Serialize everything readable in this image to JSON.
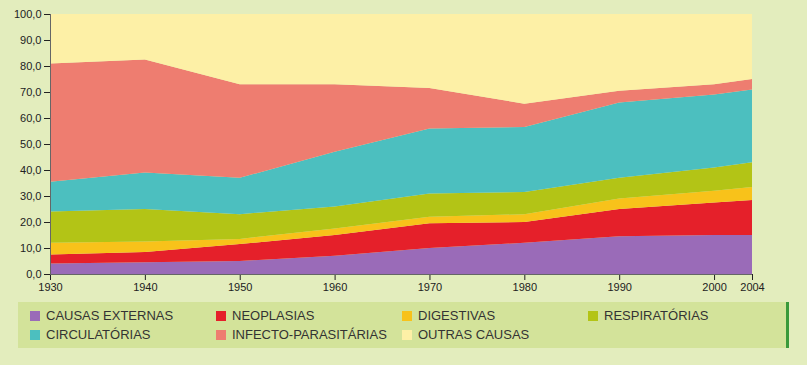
{
  "chart_data": {
    "type": "area",
    "stacked": true,
    "grid": false,
    "x": [
      1930,
      1940,
      1950,
      1960,
      1970,
      1980,
      1990,
      2000,
      2004
    ],
    "xlim": [
      1930,
      2004
    ],
    "xticks": [
      1930,
      1940,
      1950,
      1960,
      1970,
      1980,
      1990,
      2000,
      2004
    ],
    "ylim": [
      0,
      100
    ],
    "yticks": [
      {
        "value": 0,
        "label": "0,0"
      },
      {
        "value": 10,
        "label": "10,0"
      },
      {
        "value": 20,
        "label": "20,0"
      },
      {
        "value": 30,
        "label": "30,0"
      },
      {
        "value": 40,
        "label": "40,0"
      },
      {
        "value": 50,
        "label": "50,0"
      },
      {
        "value": 60,
        "label": "60,0"
      },
      {
        "value": 70,
        "label": "70,0"
      },
      {
        "value": 80,
        "label": "80,0"
      },
      {
        "value": 90,
        "label": "90,0"
      },
      {
        "value": 100,
        "label": "100,0"
      }
    ],
    "series": [
      {
        "name": "CAUSAS EXTERNAS",
        "color": "#9a6bb8",
        "values": [
          4,
          4.5,
          5,
          7,
          10,
          12,
          14.5,
          15,
          15
        ]
      },
      {
        "name": "NEOPLASIAS",
        "color": "#e5202a",
        "values": [
          3.5,
          4,
          6.5,
          8,
          9.5,
          8,
          10.5,
          12.5,
          13.5
        ]
      },
      {
        "name": "DIGESTIVAS",
        "color": "#f8c21a",
        "values": [
          4.5,
          4,
          2,
          2.5,
          2.5,
          3,
          4,
          4.5,
          5
        ]
      },
      {
        "name": "RESPIRATÓRIAS",
        "color": "#b3c416",
        "values": [
          12,
          12.5,
          9.5,
          8.5,
          9,
          8.5,
          8,
          9,
          9.5
        ]
      },
      {
        "name": "CIRCULATÓRIAS",
        "color": "#4cbfbf",
        "values": [
          11.5,
          14,
          14,
          21,
          25,
          25,
          29,
          28,
          28
        ]
      },
      {
        "name": "INFECTO-PARASITÁRIAS",
        "color": "#ee7d70",
        "values": [
          45.5,
          43.5,
          36,
          26,
          15.5,
          9,
          4.5,
          4,
          4
        ]
      },
      {
        "name": "OUTRAS CAUSAS",
        "color": "#fdf0a6",
        "values": [
          19,
          17.5,
          27,
          27,
          28.5,
          34.5,
          29.5,
          27,
          25
        ]
      }
    ]
  }
}
